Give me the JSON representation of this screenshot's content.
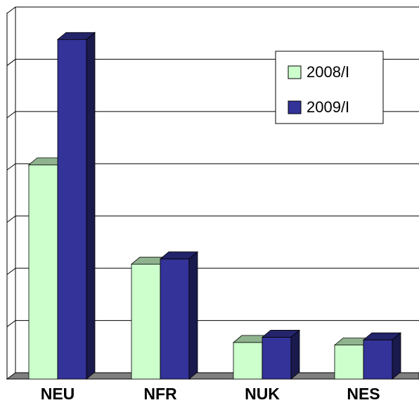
{
  "chart_data": {
    "type": "bar3d",
    "categories": [
      "NEU",
      "NFR",
      "NUK",
      "NES"
    ],
    "series": [
      {
        "name": "2008/I",
        "color": "#ccffcc",
        "values": [
          4.1,
          2.2,
          0.7,
          0.65
        ]
      },
      {
        "name": "2009/I",
        "color": "#333399",
        "values": [
          6.5,
          2.3,
          0.8,
          0.75
        ]
      }
    ],
    "ylim": [
      0,
      7
    ],
    "yticks": [
      0,
      1,
      2,
      3,
      4,
      5,
      6,
      7
    ],
    "grid": true,
    "legend": "upper right"
  }
}
